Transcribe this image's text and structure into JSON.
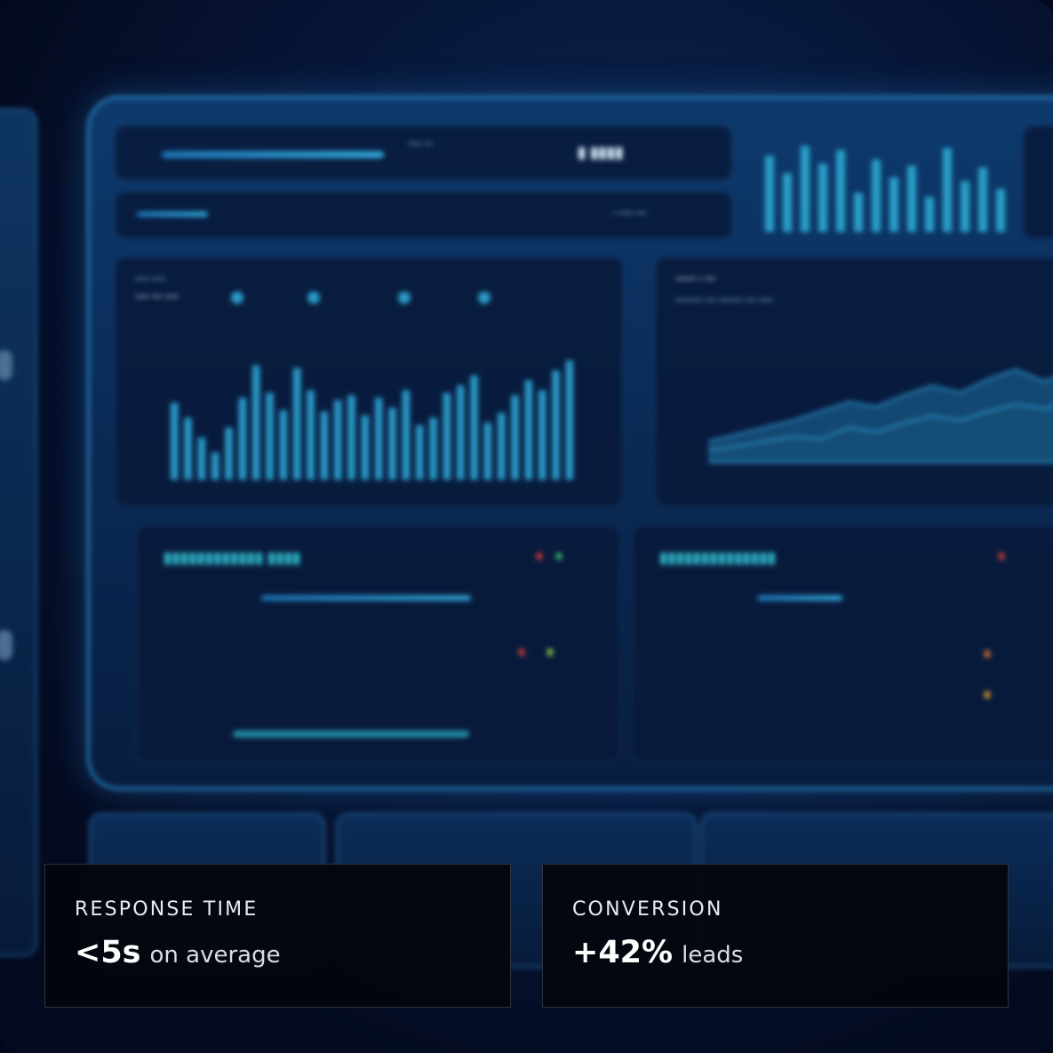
{
  "stats": [
    {
      "label": "RESPONSE TIME",
      "value": "<5s",
      "suffix": "on average"
    },
    {
      "label": "CONVERSION",
      "value": "+42%",
      "suffix": "leads"
    }
  ],
  "background": {
    "colors": {
      "accent": "#2a85c2",
      "bar": "#2a9bc9",
      "area": "#1e6d9c"
    },
    "bar_chart": {
      "values": [
        62,
        50,
        34,
        22,
        42,
        66,
        92,
        70,
        56,
        90,
        72,
        55,
        64,
        68,
        52,
        66,
        58,
        72,
        44,
        50,
        70,
        76,
        84,
        46,
        54,
        68,
        80,
        72,
        88,
        96
      ]
    },
    "area_chart": {
      "series": [
        {
          "values": [
            18,
            24,
            30,
            36,
            44,
            52,
            48,
            58,
            66,
            60,
            72,
            80,
            70,
            78,
            92
          ]
        },
        {
          "values": [
            10,
            14,
            18,
            22,
            20,
            30,
            26,
            34,
            40,
            36,
            44,
            50,
            46,
            54,
            60
          ]
        }
      ]
    },
    "mini_bars": [
      78,
      60,
      88,
      70,
      84,
      40,
      74,
      56,
      68,
      36,
      86,
      52,
      66,
      44
    ]
  }
}
